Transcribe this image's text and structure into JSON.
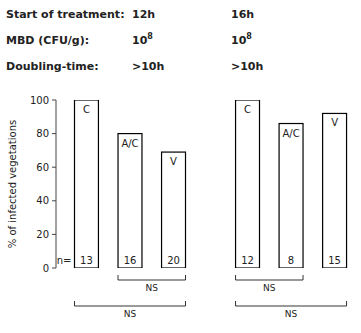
{
  "chart_data": {
    "type": "bar",
    "ylabel": "% of infected vegetations",
    "categories": [
      "C",
      "A/C",
      "V",
      "C",
      "A/C",
      "V"
    ],
    "values": [
      100,
      80,
      69,
      100,
      86,
      92
    ],
    "n": [
      13,
      16,
      20,
      12,
      8,
      15
    ],
    "n_label": "n=",
    "color": "#ffffff",
    "ylim": [
      0,
      100
    ],
    "yticks": [
      0,
      20,
      40,
      60,
      80,
      100
    ],
    "grid": false,
    "annotations": {
      "rows": [
        {
          "label": "Start of treatment:",
          "values": [
            "12h",
            "16h"
          ]
        },
        {
          "label": "MBD (CFU/g):",
          "values": [
            {
              "base": "10",
              "exponent": "8"
            },
            {
              "base": "10",
              "exponent": "8"
            }
          ]
        },
        {
          "label": "Doubling-time:",
          "values": [
            ">10h",
            ">10h"
          ]
        }
      ],
      "brackets": [
        {
          "from": 1,
          "to": 2,
          "label": "NS"
        },
        {
          "from": 0,
          "to": 2,
          "label": "NS"
        },
        {
          "from": 3,
          "to": 4,
          "label": "NS"
        },
        {
          "from": 3,
          "to": 5,
          "label": "NS"
        }
      ]
    }
  }
}
